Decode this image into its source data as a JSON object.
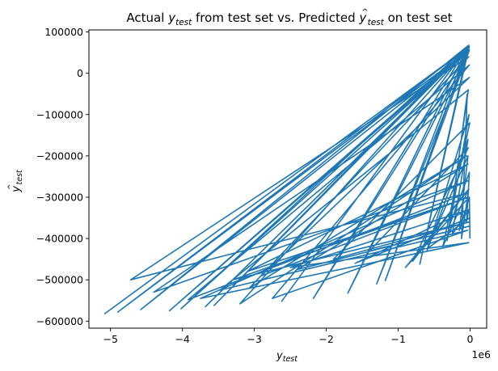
{
  "chart_data": {
    "type": "line",
    "title": "Actual y_test from test set vs. Predicted y_test-hat on test set",
    "title_parts": {
      "prefix": "Actual ",
      "y1_main": "y",
      "y1_sub": "test",
      "middle": " from test set vs. Predicted ",
      "y2_main": "y",
      "y2_hat": "^",
      "y2_sub": "test",
      "suffix": " on test set"
    },
    "xlabel": {
      "main": "y",
      "sub": "test"
    },
    "ylabel": {
      "main": "y",
      "hat": "^",
      "sub": "test"
    },
    "x_offset_label": "1e6",
    "xlim": [
      -5300000,
      230000
    ],
    "ylim": [
      -617000,
      105000
    ],
    "x_ticks": [
      {
        "value": -5000000,
        "label": "−5"
      },
      {
        "value": -4000000,
        "label": "−4"
      },
      {
        "value": -3000000,
        "label": "−3"
      },
      {
        "value": -2000000,
        "label": "−2"
      },
      {
        "value": -1000000,
        "label": "−1"
      },
      {
        "value": 0,
        "label": "0"
      }
    ],
    "y_ticks": [
      {
        "value": 100000,
        "label": "100000"
      },
      {
        "value": 0,
        "label": "0"
      },
      {
        "value": -100000,
        "label": "−100000"
      },
      {
        "value": -200000,
        "label": "−200000"
      },
      {
        "value": -300000,
        "label": "−300000"
      },
      {
        "value": -400000,
        "label": "−400000"
      },
      {
        "value": -500000,
        "label": "−500000"
      },
      {
        "value": -600000,
        "label": "−600000"
      }
    ],
    "grid": false,
    "series": [
      {
        "color": "#1f77b4",
        "x": [
          -50000,
          -5080000,
          -10000,
          -4900000,
          -30000,
          -4580000,
          -20000,
          -4020000,
          -60000,
          -4180000,
          -15000,
          -3680000,
          -40000,
          -3560000,
          -25000,
          -2620000,
          -35000,
          -2180000,
          -20000,
          -1700000,
          -45000,
          -1300000,
          -10000,
          -1180000,
          -30000,
          -700000,
          -15000,
          -3200000,
          -50000,
          -3070000,
          -20000,
          -4720000,
          -40000,
          -3920000,
          -10000,
          -2750000,
          -35000,
          -3480000,
          -25000,
          -320000,
          -15000,
          -600000,
          -30000,
          -250000,
          -20000,
          -50000,
          -10000,
          -280000,
          -40000,
          -120000,
          -20000,
          -900000,
          -15000,
          -3100000,
          -30000,
          -2400000,
          -10000,
          -1400000,
          -25000,
          -800000,
          -20000,
          -380000,
          -5000,
          -1900000,
          -15000,
          -3300000,
          -30000,
          -2900000,
          -10000,
          -4400000,
          -25000,
          -3750000,
          -20000,
          -2500000,
          -15000,
          -1600000,
          -5000,
          -600000,
          -30000,
          -150000,
          -10000,
          -3000
        ],
        "y": [
          60000,
          -582000,
          65000,
          -578000,
          55000,
          -572000,
          68000,
          -570000,
          50000,
          -575000,
          62000,
          -565000,
          58000,
          -562000,
          66000,
          -552000,
          64000,
          -545000,
          52000,
          -532000,
          60000,
          -510000,
          56000,
          -502000,
          61000,
          -462000,
          63000,
          -558000,
          -200000,
          -520000,
          40000,
          -500000,
          -290000,
          -548000,
          20000,
          -545000,
          -380000,
          -525000,
          -40000,
          -405000,
          -100000,
          -430000,
          -160000,
          -390000,
          -330000,
          -360000,
          -240000,
          -365000,
          -50000,
          -400000,
          -280000,
          -470000,
          -300000,
          -480000,
          -220000,
          -475000,
          -370000,
          -430000,
          -180000,
          -455000,
          -280000,
          -420000,
          -120000,
          -450000,
          -360000,
          -500000,
          -300000,
          -490000,
          -10000,
          -530000,
          -260000,
          -545000,
          -410000,
          -470000,
          -330000,
          -460000,
          -350000,
          -425000,
          -200000,
          -380000,
          -300000,
          -400000
        ]
      }
    ]
  }
}
